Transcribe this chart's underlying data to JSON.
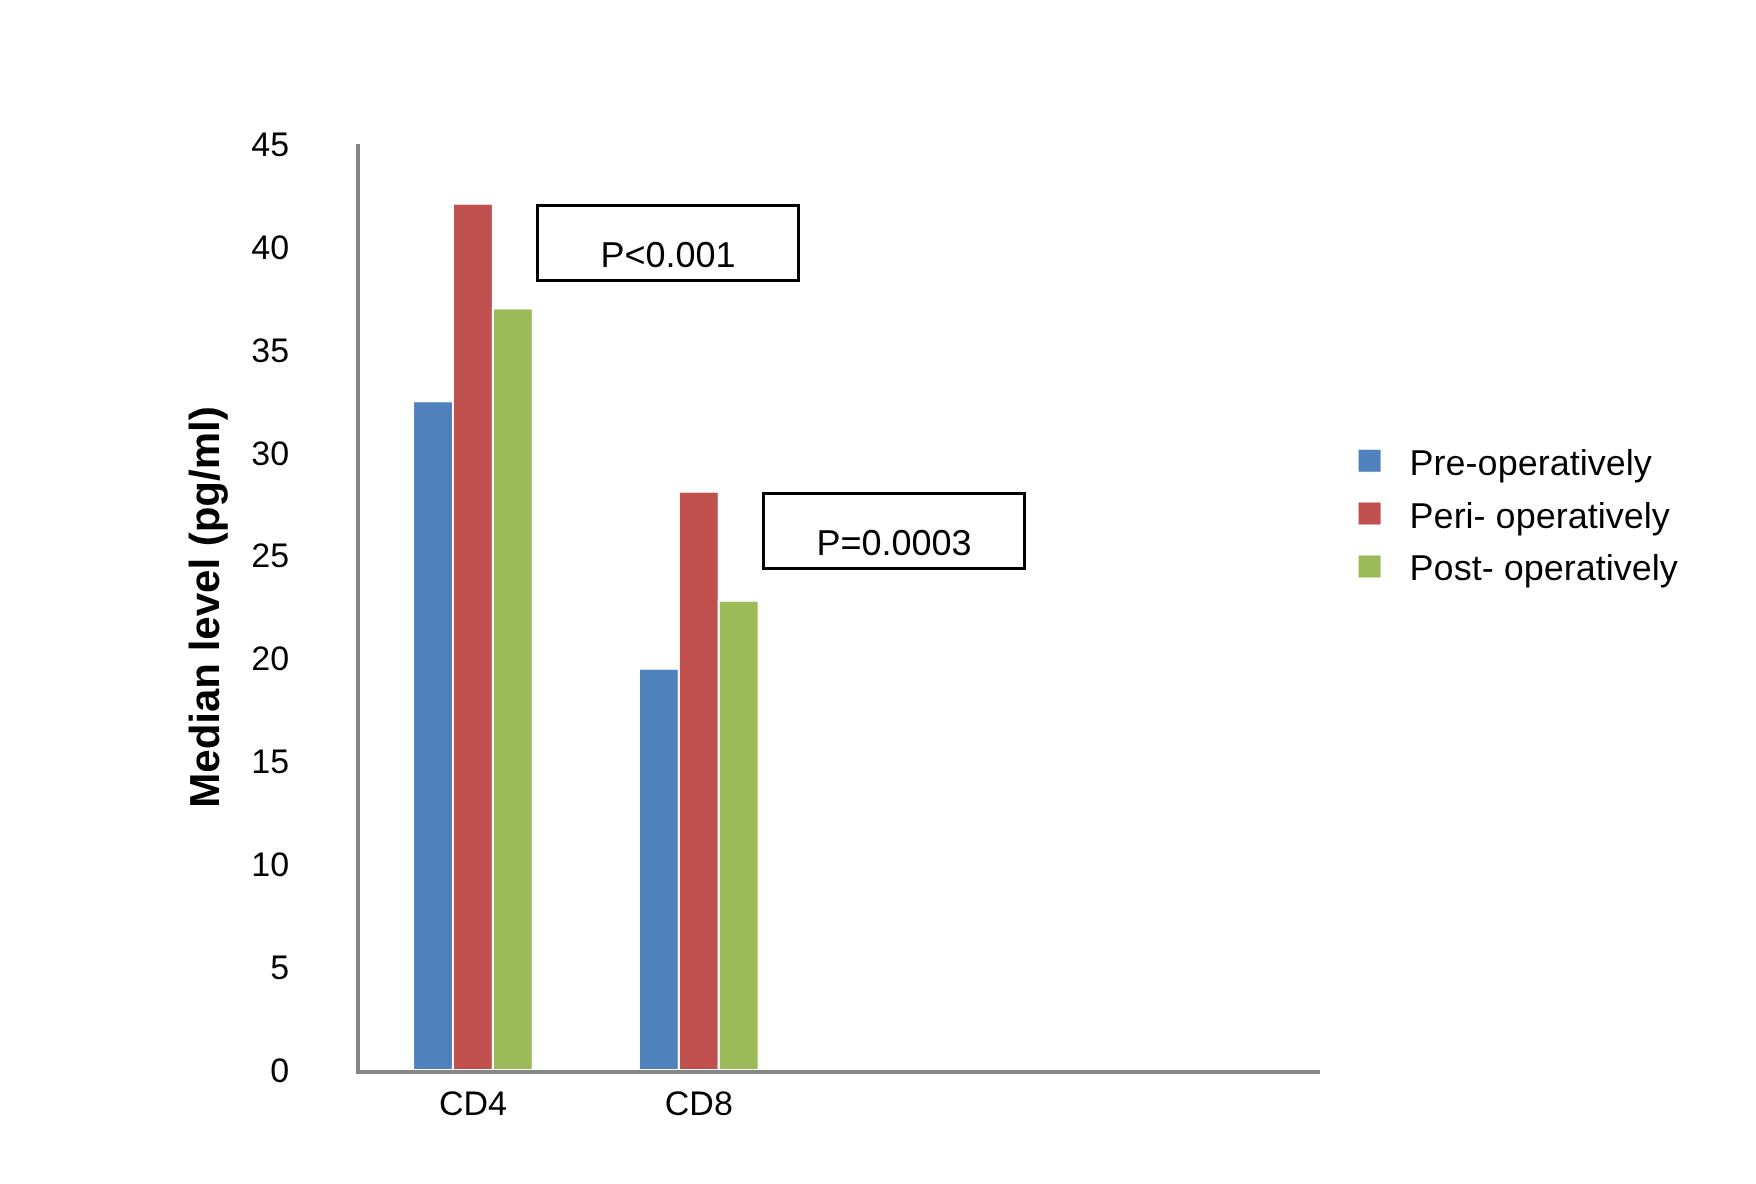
{
  "chart_data": {
    "type": "bar",
    "ylabel": "Median level (pg/ml)",
    "categories": [
      "CD4",
      "CD8",
      null,
      null
    ],
    "series": [
      {
        "name": "Pre-operatively",
        "color": "#4f81bd",
        "values": [
          32.5,
          19.5,
          null,
          null
        ]
      },
      {
        "name": "Peri- operatively",
        "color": "#c0504d",
        "values": [
          42.1,
          28.1,
          null,
          null
        ]
      },
      {
        "name": "Post- operatively",
        "color": "#9bbb59",
        "values": [
          37.0,
          22.8,
          null,
          null
        ]
      }
    ],
    "ylim": [
      0,
      45
    ],
    "yticks": [
      0,
      5,
      10,
      15,
      20,
      25,
      30,
      35,
      40,
      45
    ],
    "grid": false,
    "legend": "right",
    "annotations": [
      "P<0.001",
      "P=0.0003"
    ]
  }
}
